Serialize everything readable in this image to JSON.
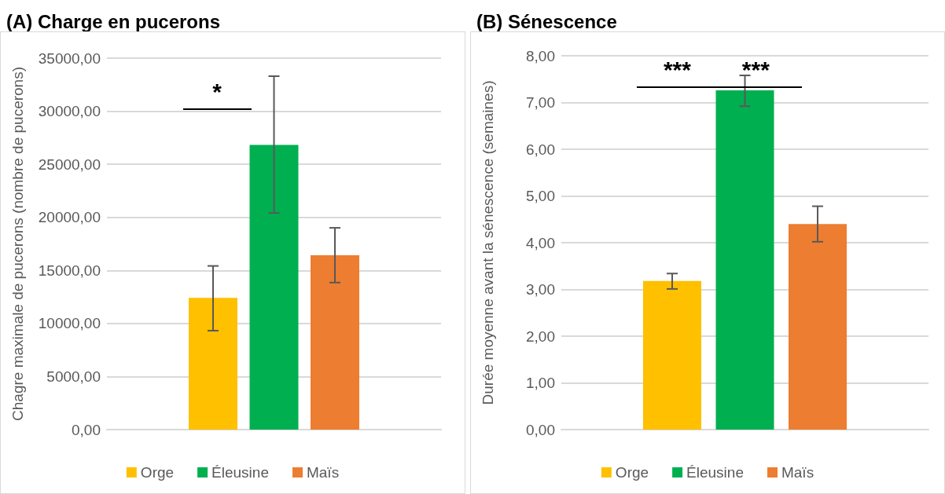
{
  "chart_data": [
    {
      "type": "bar",
      "title": "(A) Charge en pucerons",
      "ylabel": "Chagre maximale de pucerons (nombre de pucerons)",
      "categories": [
        null
      ],
      "series": [
        {
          "name": "Orge",
          "color": "#ffc000",
          "values": [
            12420
          ],
          "errors": [
            [
              9320,
              15420
            ]
          ]
        },
        {
          "name": "Éleusine",
          "color": "#00b050",
          "values": [
            26830
          ],
          "errors": [
            [
              20410,
              33300
            ]
          ]
        },
        {
          "name": "Maïs",
          "color": "#ed7d31",
          "values": [
            16430
          ],
          "errors": [
            [
              13850,
              19010
            ]
          ]
        }
      ],
      "ylim": [
        0,
        35000
      ],
      "yticks": [
        {
          "value": 0,
          "label": "0,00"
        },
        {
          "value": 5000,
          "label": "5000,00"
        },
        {
          "value": 10000,
          "label": "10000,00"
        },
        {
          "value": 15000,
          "label": "15000,00"
        },
        {
          "value": 20000,
          "label": "20000,00"
        },
        {
          "value": 25000,
          "label": "25000,00"
        },
        {
          "value": 30000,
          "label": "30000,00"
        },
        {
          "value": 35000,
          "label": "35000,00"
        }
      ],
      "annotations": [
        "*"
      ],
      "grid": "y",
      "legend": "bottom"
    },
    {
      "type": "bar",
      "title": "(B) Sénescence",
      "ylabel": "Durée moyenne avant la sénescence (semaines)",
      "categories": [
        null
      ],
      "series": [
        {
          "name": "Orge",
          "color": "#ffc000",
          "values": [
            3.18
          ],
          "errors": [
            [
              3.01,
              3.34
            ]
          ]
        },
        {
          "name": "Éleusine",
          "color": "#00b050",
          "values": [
            7.26
          ],
          "errors": [
            [
              6.92,
              7.58
            ]
          ]
        },
        {
          "name": "Maïs",
          "color": "#ed7d31",
          "values": [
            4.4
          ],
          "errors": [
            [
              4.02,
              4.78
            ]
          ]
        }
      ],
      "ylim": [
        0,
        8
      ],
      "yticks": [
        {
          "value": 0,
          "label": "0,00"
        },
        {
          "value": 1,
          "label": "1,00"
        },
        {
          "value": 2,
          "label": "2,00"
        },
        {
          "value": 3,
          "label": "3,00"
        },
        {
          "value": 4,
          "label": "4,00"
        },
        {
          "value": 5,
          "label": "5,00"
        },
        {
          "value": 6,
          "label": "6,00"
        },
        {
          "value": 7,
          "label": "7,00"
        },
        {
          "value": 8,
          "label": "8,00"
        }
      ],
      "annotations": [
        "***",
        "***"
      ],
      "grid": "y",
      "legend": "bottom"
    }
  ]
}
